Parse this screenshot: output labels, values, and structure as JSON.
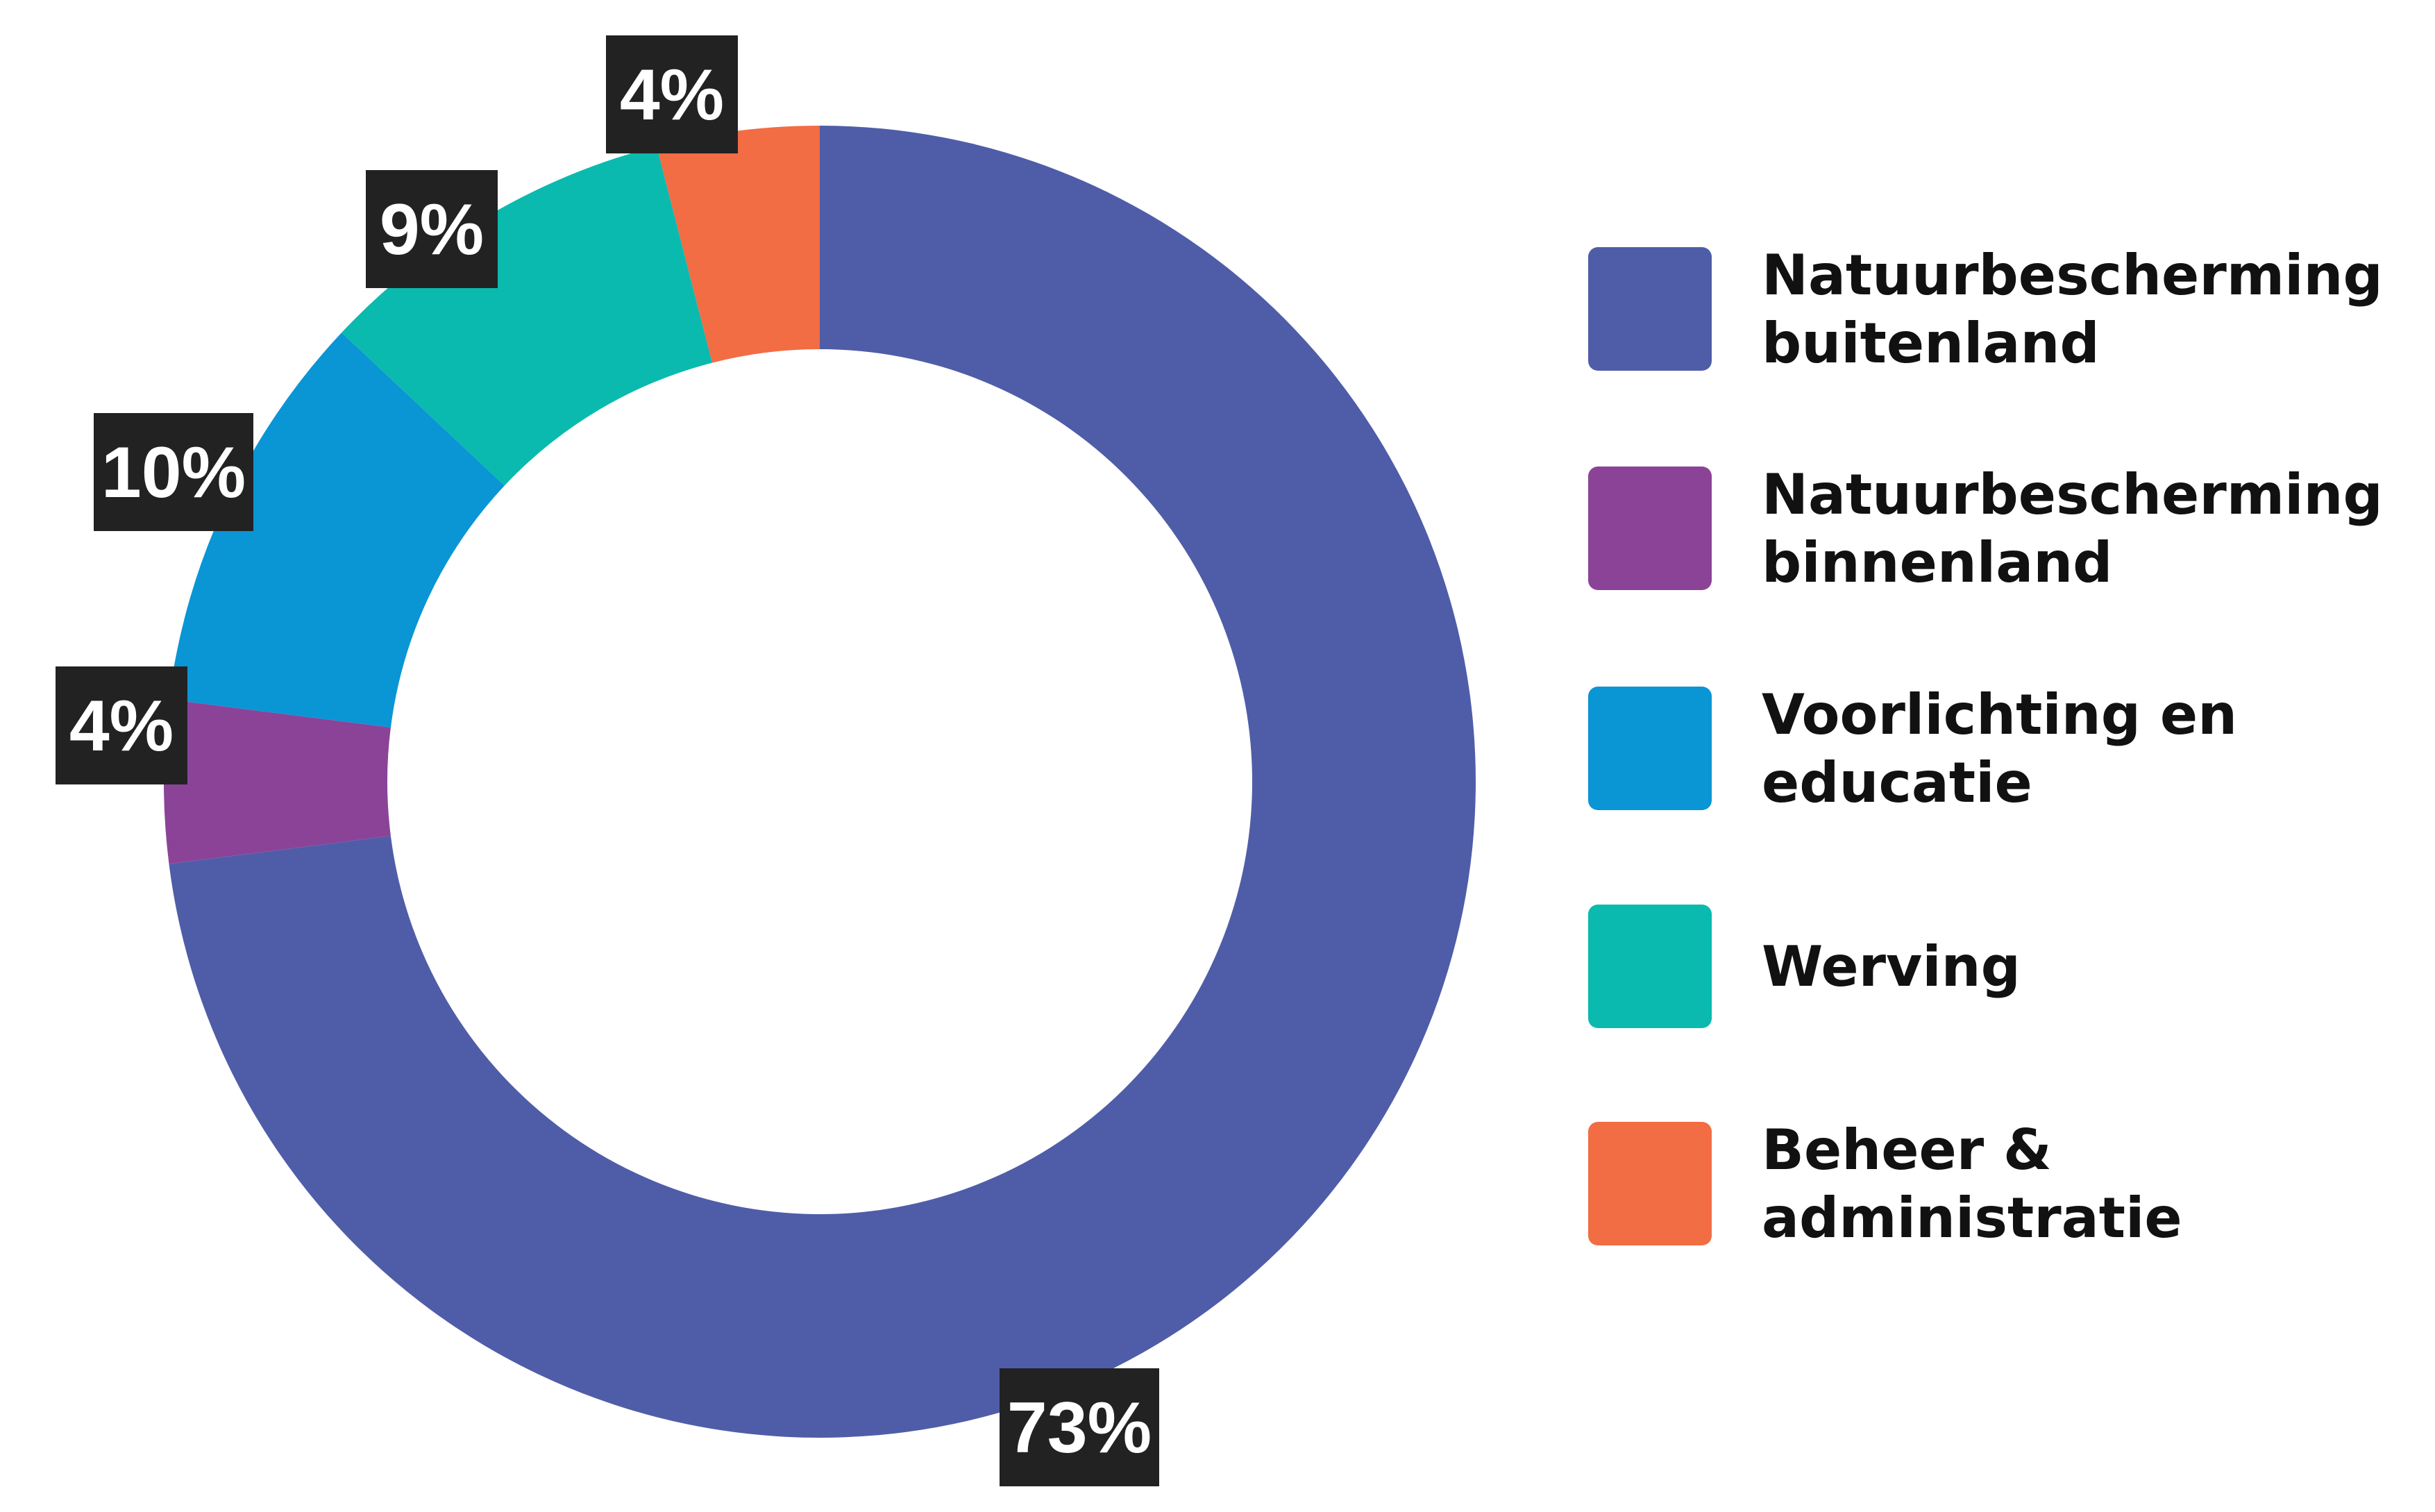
{
  "chart_data": {
    "type": "pie",
    "donut": true,
    "title": "",
    "legend_position": "right",
    "categories": [
      "Natuurbescherming buitenland",
      "Natuurbescherming binnenland",
      "Voorlichting en educatie",
      "Werving",
      "Beheer & administratie"
    ],
    "values": [
      73,
      4,
      10,
      9,
      4
    ],
    "value_labels": [
      "73%",
      "4%",
      "10%",
      "9%",
      "4%"
    ],
    "colors": [
      "#4f5da8",
      "#8b4398",
      "#0a95d5",
      "#0abaae",
      "#f26c44"
    ],
    "label_box_color": "#222222",
    "legend": [
      {
        "lines": [
          "Natuurbescherming",
          "buitenland"
        ],
        "color": "#4f5da8"
      },
      {
        "lines": [
          "Natuurbescherming",
          "binnenland"
        ],
        "color": "#8b4398"
      },
      {
        "lines": [
          "Voorlichting en",
          "educatie"
        ],
        "color": "#0a95d5"
      },
      {
        "lines": [
          "Werving"
        ],
        "color": "#0abaae"
      },
      {
        "lines": [
          "Beheer &",
          "administratie"
        ],
        "color": "#f26c44"
      }
    ]
  }
}
